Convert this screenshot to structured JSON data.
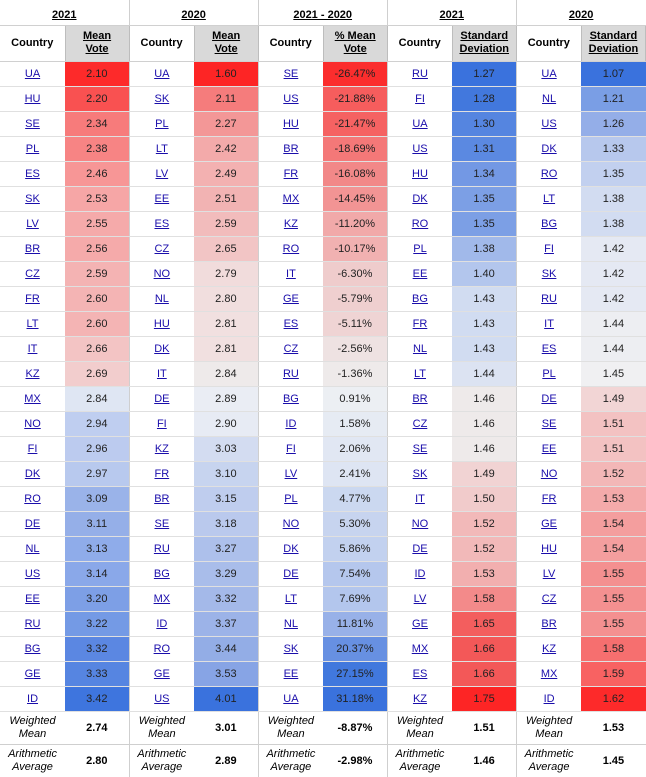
{
  "years": [
    "2021",
    "2020",
    "2021 - 2020",
    "2021",
    "2020"
  ],
  "country_header": "Country",
  "value_headers": [
    [
      "Mean",
      "Vote"
    ],
    [
      "Mean",
      "Vote"
    ],
    [
      "% Mean",
      "Vote"
    ],
    [
      "Standard",
      "Deviation"
    ],
    [
      "Standard",
      "Deviation"
    ]
  ],
  "groups": [
    {
      "rows": [
        [
          "UA",
          "2.10"
        ],
        [
          "HU",
          "2.20"
        ],
        [
          "SE",
          "2.34"
        ],
        [
          "PL",
          "2.38"
        ],
        [
          "ES",
          "2.46"
        ],
        [
          "SK",
          "2.53"
        ],
        [
          "LV",
          "2.55"
        ],
        [
          "BR",
          "2.56"
        ],
        [
          "CZ",
          "2.59"
        ],
        [
          "FR",
          "2.60"
        ],
        [
          "LT",
          "2.60"
        ],
        [
          "IT",
          "2.66"
        ],
        [
          "KZ",
          "2.69"
        ],
        [
          "MX",
          "2.84"
        ],
        [
          "NO",
          "2.94"
        ],
        [
          "FI",
          "2.96"
        ],
        [
          "DK",
          "2.97"
        ],
        [
          "RO",
          "3.09"
        ],
        [
          "DE",
          "3.11"
        ],
        [
          "NL",
          "3.13"
        ],
        [
          "US",
          "3.14"
        ],
        [
          "EE",
          "3.20"
        ],
        [
          "RU",
          "3.22"
        ],
        [
          "BG",
          "3.32"
        ],
        [
          "GE",
          "3.33"
        ],
        [
          "ID",
          "3.42"
        ]
      ],
      "colors": [
        "#fd2a2a",
        "#f95151",
        "#f77b7b",
        "#f78484",
        "#f79696",
        "#f6a6a6",
        "#f5aaaa",
        "#f5aaaa",
        "#f4b3b3",
        "#f4b4b4",
        "#f4b4b4",
        "#f3c4c4",
        "#f2cdcd",
        "#dfe6f3",
        "#bfcef0",
        "#bccbef",
        "#b8c9ee",
        "#9ab3e9",
        "#95afe8",
        "#8facea",
        "#8aa8e9",
        "#7d9fe6",
        "#749ae5",
        "#5b87e2",
        "#5685e1",
        "#3e75de"
      ],
      "footer": [
        "2.74",
        "2.80"
      ],
      "footer_colors": [
        "#ffffff",
        "#ffffff"
      ]
    },
    {
      "rows": [
        [
          "UA",
          "1.60"
        ],
        [
          "SK",
          "2.11"
        ],
        [
          "PL",
          "2.27"
        ],
        [
          "LT",
          "2.42"
        ],
        [
          "LV",
          "2.49"
        ],
        [
          "EE",
          "2.51"
        ],
        [
          "ES",
          "2.59"
        ],
        [
          "CZ",
          "2.65"
        ],
        [
          "NO",
          "2.79"
        ],
        [
          "NL",
          "2.80"
        ],
        [
          "HU",
          "2.81"
        ],
        [
          "DK",
          "2.81"
        ],
        [
          "IT",
          "2.84"
        ],
        [
          "DE",
          "2.89"
        ],
        [
          "FI",
          "2.90"
        ],
        [
          "KZ",
          "3.03"
        ],
        [
          "FR",
          "3.10"
        ],
        [
          "BR",
          "3.15"
        ],
        [
          "SE",
          "3.18"
        ],
        [
          "RU",
          "3.27"
        ],
        [
          "BG",
          "3.29"
        ],
        [
          "MX",
          "3.32"
        ],
        [
          "ID",
          "3.37"
        ],
        [
          "RO",
          "3.44"
        ],
        [
          "GE",
          "3.53"
        ],
        [
          "US",
          "4.01"
        ]
      ],
      "colors": [
        "#fd2525",
        "#f57c7c",
        "#f39797",
        "#f3aaaa",
        "#f3b1b1",
        "#f2b3b3",
        "#f2bcbc",
        "#f2c5c5",
        "#f1dcdc",
        "#f1dede",
        "#f1e0e0",
        "#f1e0e0",
        "#eeeaea",
        "#eaedf4",
        "#e7ebf4",
        "#d3dcf1",
        "#c7d4ef",
        "#bfcdee",
        "#bac9ed",
        "#adc0eb",
        "#a9bdea",
        "#a4b9e9",
        "#9cb3e8",
        "#93ade6",
        "#87a4e5",
        "#3a72dd"
      ],
      "footer": [
        "3.01",
        "2.89"
      ],
      "footer_colors": [
        "#ffffff",
        "#ffffff"
      ]
    },
    {
      "rows": [
        [
          "SE",
          "-26.47%"
        ],
        [
          "US",
          "-21.88%"
        ],
        [
          "HU",
          "-21.47%"
        ],
        [
          "BR",
          "-18.69%"
        ],
        [
          "FR",
          "-16.08%"
        ],
        [
          "MX",
          "-14.45%"
        ],
        [
          "KZ",
          "-11.20%"
        ],
        [
          "RO",
          "-10.17%"
        ],
        [
          "IT",
          "-6.30%"
        ],
        [
          "GE",
          "-5.79%"
        ],
        [
          "ES",
          "-5.11%"
        ],
        [
          "CZ",
          "-2.56%"
        ],
        [
          "RU",
          "-1.36%"
        ],
        [
          "BG",
          "0.91%"
        ],
        [
          "ID",
          "1.58%"
        ],
        [
          "FI",
          "2.06%"
        ],
        [
          "LV",
          "2.41%"
        ],
        [
          "PL",
          "4.77%"
        ],
        [
          "NO",
          "5.30%"
        ],
        [
          "DK",
          "5.86%"
        ],
        [
          "DE",
          "7.54%"
        ],
        [
          "LT",
          "7.69%"
        ],
        [
          "NL",
          "11.81%"
        ],
        [
          "SK",
          "20.37%"
        ],
        [
          "EE",
          "27.15%"
        ],
        [
          "UA",
          "31.18%"
        ]
      ],
      "colors": [
        "#fb2d2d",
        "#f65d5d",
        "#f56262",
        "#f47878",
        "#f28888",
        "#f29494",
        "#f1a9a9",
        "#f1b1b1",
        "#efcccc",
        "#efcfcf",
        "#efd4d4",
        "#eee2e2",
        "#eeeaea",
        "#eceff3",
        "#e6ebf3",
        "#e1e7f3",
        "#dee5f3",
        "#cbd8f0",
        "#c7d4ef",
        "#c2d1ef",
        "#b5c7ed",
        "#b3c6ed",
        "#98b1e8",
        "#6790e2",
        "#4178dd",
        "#3a72dd"
      ],
      "footer": [
        "-8.87%",
        "-2.98%"
      ],
      "footer_colors": [
        "#ffffff",
        "#ffffff"
      ]
    },
    {
      "rows": [
        [
          "RU",
          "1.27"
        ],
        [
          "FI",
          "1.28"
        ],
        [
          "UA",
          "1.30"
        ],
        [
          "US",
          "1.31"
        ],
        [
          "HU",
          "1.34"
        ],
        [
          "DK",
          "1.35"
        ],
        [
          "RO",
          "1.35"
        ],
        [
          "PL",
          "1.38"
        ],
        [
          "EE",
          "1.40"
        ],
        [
          "BG",
          "1.43"
        ],
        [
          "FR",
          "1.43"
        ],
        [
          "NL",
          "1.43"
        ],
        [
          "LT",
          "1.44"
        ],
        [
          "BR",
          "1.46"
        ],
        [
          "CZ",
          "1.46"
        ],
        [
          "SE",
          "1.46"
        ],
        [
          "SK",
          "1.49"
        ],
        [
          "IT",
          "1.50"
        ],
        [
          "NO",
          "1.52"
        ],
        [
          "DE",
          "1.52"
        ],
        [
          "ID",
          "1.53"
        ],
        [
          "LV",
          "1.58"
        ],
        [
          "GE",
          "1.65"
        ],
        [
          "MX",
          "1.66"
        ],
        [
          "ES",
          "1.66"
        ],
        [
          "KZ",
          "1.75"
        ]
      ],
      "colors": [
        "#3a72dd",
        "#4278dd",
        "#5585e0",
        "#5b89e1",
        "#7398e4",
        "#7c9fe5",
        "#7c9fe5",
        "#a1b9ea",
        "#b3c6ed",
        "#d1dcf1",
        "#d1dcf1",
        "#d1dcf1",
        "#dce3f2",
        "#eeeaea",
        "#eeeaea",
        "#eeeaea",
        "#f1d3d3",
        "#f1cbcb",
        "#f2b9b9",
        "#f2b9b9",
        "#f2afaf",
        "#f38a8a",
        "#f35e5e",
        "#f35858",
        "#f35858",
        "#fd2525"
      ],
      "footer": [
        "1.51",
        "1.46"
      ],
      "footer_colors": [
        "#ffffff",
        "#ffffff"
      ]
    },
    {
      "rows": [
        [
          "UA",
          "1.07"
        ],
        [
          "NL",
          "1.21"
        ],
        [
          "US",
          "1.26"
        ],
        [
          "DK",
          "1.33"
        ],
        [
          "RO",
          "1.35"
        ],
        [
          "LT",
          "1.38"
        ],
        [
          "BG",
          "1.38"
        ],
        [
          "FI",
          "1.42"
        ],
        [
          "SK",
          "1.42"
        ],
        [
          "RU",
          "1.42"
        ],
        [
          "IT",
          "1.44"
        ],
        [
          "ES",
          "1.44"
        ],
        [
          "PL",
          "1.45"
        ],
        [
          "DE",
          "1.49"
        ],
        [
          "SE",
          "1.51"
        ],
        [
          "EE",
          "1.51"
        ],
        [
          "NO",
          "1.52"
        ],
        [
          "FR",
          "1.53"
        ],
        [
          "GE",
          "1.54"
        ],
        [
          "HU",
          "1.54"
        ],
        [
          "LV",
          "1.55"
        ],
        [
          "CZ",
          "1.55"
        ],
        [
          "BR",
          "1.55"
        ],
        [
          "KZ",
          "1.58"
        ],
        [
          "MX",
          "1.59"
        ],
        [
          "ID",
          "1.62"
        ]
      ],
      "colors": [
        "#3a72dd",
        "#7a9ee5",
        "#94aee8",
        "#b7c8ed",
        "#c2d0ef",
        "#d2dcf1",
        "#d2dcf1",
        "#e5e9f3",
        "#e5e9f3",
        "#e5e9f3",
        "#edeef2",
        "#edeef2",
        "#f0f0f2",
        "#f2d5d5",
        "#f3c2c2",
        "#f3c2c2",
        "#f3b7b7",
        "#f4aaaa",
        "#f49e9e",
        "#f49e9e",
        "#f49090",
        "#f49090",
        "#f49090",
        "#f66f6f",
        "#f86262",
        "#fd2a2a"
      ],
      "footer": [
        "1.53",
        "1.45"
      ],
      "footer_colors": [
        "#ffffff",
        "#ffffff"
      ]
    }
  ],
  "footer_labels": [
    [
      "Weighted",
      "Mean"
    ],
    [
      "Arithmetic",
      "Average"
    ]
  ]
}
